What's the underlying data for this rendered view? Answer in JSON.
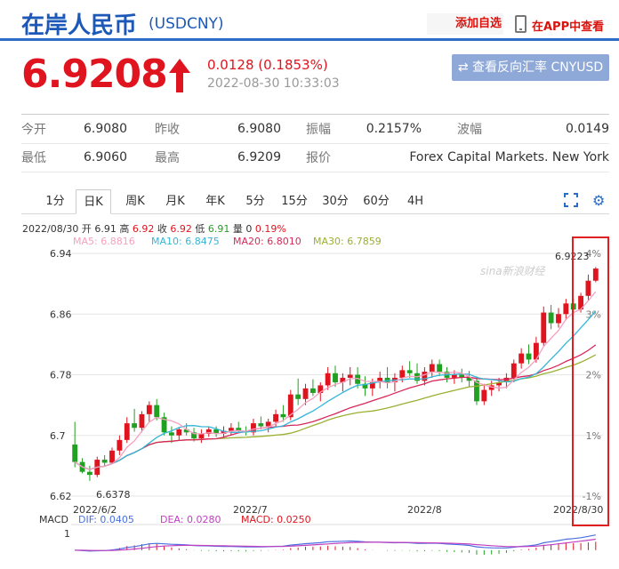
{
  "header": {
    "name": "在岸人民币",
    "code": "(USDCNY)",
    "add_favorite": "添加自选",
    "app_view": "在APP中查看"
  },
  "quote": {
    "price": "6.9208",
    "change": "0.0128 (0.1853%)",
    "timestamp": "2022-08-30 10:33:03",
    "reverse_button": "⇄ 查看反向汇率 CNYUSD"
  },
  "stats": [
    [
      {
        "label": "今开",
        "value": "6.9080"
      },
      {
        "label": "昨收",
        "value": "6.9080"
      },
      {
        "label": "振幅",
        "value": "0.2157%"
      },
      {
        "label": "波幅",
        "value": "0.0149"
      }
    ],
    [
      {
        "label": "最低",
        "value": "6.9060"
      },
      {
        "label": "最高",
        "value": "6.9209"
      },
      {
        "label": "报价",
        "value": "Forex Capital Markets. New York"
      }
    ]
  ],
  "tabs": [
    "1分",
    "日K",
    "周K",
    "月K",
    "年K",
    "5分",
    "15分",
    "30分",
    "60分",
    "4H"
  ],
  "active_tab": "日K",
  "ohlc_info": {
    "date": "2022/08/30",
    "open_label": "开",
    "open": "6.91",
    "high_label": "高",
    "high": "6.92",
    "close_label": "收",
    "close": "6.92",
    "low_label": "低",
    "low": "6.91",
    "vol_label": "量",
    "vol": "0",
    "pct": "0.19%"
  },
  "ma": {
    "ma5": "MA5: 6.8816",
    "ma10": "MA10: 6.8475",
    "ma20": "MA20: 6.8010",
    "ma30": "MA30: 6.7859"
  },
  "macd": {
    "label": "MACD",
    "dif": "DIF: 0.0405",
    "dea": "DEA: 0.0280",
    "macd": "MACD: 0.0250",
    "axis_1": "1"
  },
  "watermark": "sina新浪财经",
  "colors": {
    "up": "#e0141e",
    "down": "#22a022",
    "ma5": "#f5a0c0",
    "ma10": "#35b6d8",
    "ma20": "#d8285a",
    "ma30": "#9ab030",
    "accent": "#2b6cc4"
  },
  "chart_data": {
    "type": "candlestick",
    "y_ticks": [
      "6.94",
      "6.86",
      "6.78",
      "6.7",
      "6.62"
    ],
    "pct_ticks": [
      "4%",
      "3%",
      "2%",
      "1%",
      "-1%"
    ],
    "x_ticks": [
      "2022/6/2",
      "2022/7",
      "2022/8",
      "2022/8/30"
    ],
    "ylim": [
      6.62,
      6.94
    ],
    "max_label": "6.9223",
    "min_label": "6.6378",
    "candles": [
      [
        6.688,
        6.718,
        6.658,
        6.665
      ],
      [
        6.665,
        6.67,
        6.65,
        6.652
      ],
      [
        6.652,
        6.66,
        6.64,
        6.648
      ],
      [
        6.648,
        6.672,
        6.645,
        6.668
      ],
      [
        6.668,
        6.674,
        6.66,
        6.664
      ],
      [
        6.664,
        6.684,
        6.662,
        6.68
      ],
      [
        6.68,
        6.7,
        6.674,
        6.694
      ],
      [
        6.694,
        6.724,
        6.69,
        6.716
      ],
      [
        6.716,
        6.735,
        6.705,
        6.71
      ],
      [
        6.71,
        6.732,
        6.704,
        6.728
      ],
      [
        6.728,
        6.745,
        6.718,
        6.74
      ],
      [
        6.74,
        6.748,
        6.72,
        6.724
      ],
      [
        6.724,
        6.73,
        6.7,
        6.704
      ],
      [
        6.704,
        6.712,
        6.69,
        6.7
      ],
      [
        6.7,
        6.71,
        6.694,
        6.708
      ],
      [
        6.708,
        6.716,
        6.7,
        6.704
      ],
      [
        6.704,
        6.71,
        6.692,
        6.696
      ],
      [
        6.696,
        6.708,
        6.69,
        6.702
      ],
      [
        6.702,
        6.712,
        6.698,
        6.708
      ],
      [
        6.708,
        6.712,
        6.698,
        6.702
      ],
      [
        6.702,
        6.712,
        6.696,
        6.706
      ],
      [
        6.706,
        6.716,
        6.7,
        6.71
      ],
      [
        6.71,
        6.718,
        6.704,
        6.706
      ],
      [
        6.706,
        6.712,
        6.7,
        6.704
      ],
      [
        6.704,
        6.722,
        6.7,
        6.716
      ],
      [
        6.716,
        6.725,
        6.708,
        6.712
      ],
      [
        6.712,
        6.722,
        6.704,
        6.718
      ],
      [
        6.718,
        6.734,
        6.712,
        6.728
      ],
      [
        6.728,
        6.74,
        6.718,
        6.724
      ],
      [
        6.724,
        6.76,
        6.72,
        6.754
      ],
      [
        6.754,
        6.775,
        6.74,
        6.748
      ],
      [
        6.748,
        6.768,
        6.74,
        6.762
      ],
      [
        6.762,
        6.774,
        6.752,
        6.756
      ],
      [
        6.756,
        6.77,
        6.745,
        6.766
      ],
      [
        6.766,
        6.79,
        6.76,
        6.782
      ],
      [
        6.782,
        6.792,
        6.764,
        6.77
      ],
      [
        6.77,
        6.782,
        6.758,
        6.776
      ],
      [
        6.776,
        6.79,
        6.766,
        6.78
      ],
      [
        6.78,
        6.79,
        6.762,
        6.768
      ],
      [
        6.768,
        6.778,
        6.752,
        6.762
      ],
      [
        6.762,
        6.775,
        6.752,
        6.77
      ],
      [
        6.77,
        6.784,
        6.762,
        6.776
      ],
      [
        6.776,
        6.79,
        6.762,
        6.77
      ],
      [
        6.77,
        6.782,
        6.758,
        6.776
      ],
      [
        6.776,
        6.792,
        6.77,
        6.786
      ],
      [
        6.786,
        6.798,
        6.776,
        6.782
      ],
      [
        6.782,
        6.795,
        6.768,
        6.772
      ],
      [
        6.772,
        6.79,
        6.766,
        6.784
      ],
      [
        6.784,
        6.8,
        6.776,
        6.794
      ],
      [
        6.794,
        6.8,
        6.778,
        6.784
      ],
      [
        6.784,
        6.79,
        6.77,
        6.776
      ],
      [
        6.776,
        6.786,
        6.768,
        6.78
      ],
      [
        6.78,
        6.788,
        6.77,
        6.776
      ],
      [
        6.776,
        6.785,
        6.764,
        6.772
      ],
      [
        6.772,
        6.778,
        6.74,
        6.745
      ],
      [
        6.745,
        6.768,
        6.74,
        6.76
      ],
      [
        6.76,
        6.772,
        6.752,
        6.766
      ],
      [
        6.766,
        6.776,
        6.758,
        6.77
      ],
      [
        6.77,
        6.782,
        6.762,
        6.776
      ],
      [
        6.776,
        6.8,
        6.77,
        6.795
      ],
      [
        6.795,
        6.815,
        6.788,
        6.808
      ],
      [
        6.808,
        6.82,
        6.794,
        6.8
      ],
      [
        6.8,
        6.83,
        6.796,
        6.822
      ],
      [
        6.822,
        6.87,
        6.818,
        6.862
      ],
      [
        6.862,
        6.872,
        6.84,
        6.848
      ],
      [
        6.848,
        6.868,
        6.842,
        6.86
      ],
      [
        6.86,
        6.88,
        6.852,
        6.874
      ],
      [
        6.874,
        6.88,
        6.86,
        6.866
      ],
      [
        6.866,
        6.888,
        6.862,
        6.884
      ],
      [
        6.884,
        6.912,
        6.878,
        6.904
      ],
      [
        6.904,
        6.922,
        6.902,
        6.92
      ]
    ]
  }
}
